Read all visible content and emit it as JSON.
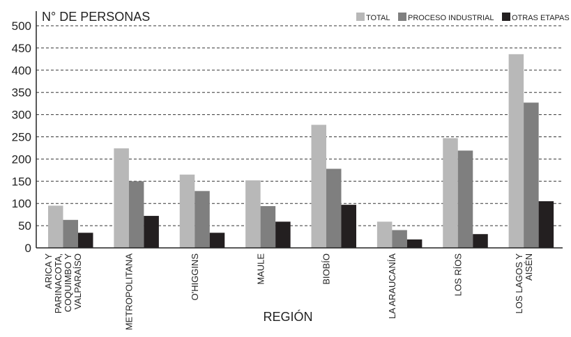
{
  "chart_data": {
    "type": "bar",
    "ylabel": "N° DE PERSONAS",
    "xlabel": "REGIÓN",
    "ylim": [
      0,
      500
    ],
    "yticks": [
      0,
      50,
      100,
      150,
      200,
      250,
      300,
      350,
      400,
      450,
      500
    ],
    "grid": true,
    "legend_position": "top-right",
    "categories": [
      [
        "ARICA Y",
        "PARINACOTA,",
        "COQUIMBO Y",
        "VALPARAÍSO"
      ],
      [
        "METROPOLITANA"
      ],
      [
        "O'HIGGINS"
      ],
      [
        "MAULE"
      ],
      [
        "BIOBÍO"
      ],
      [
        "LA ARAUCANÍA"
      ],
      [
        "LOS RÍOS"
      ],
      [
        "LOS LAGOS Y",
        "AISÉN"
      ]
    ],
    "series": [
      {
        "name": "TOTAL",
        "color": "#b8b8b8",
        "values": [
          95,
          224,
          165,
          152,
          277,
          59,
          247,
          436
        ]
      },
      {
        "name": "PROCESO INDUSTRIAL",
        "color": "#7f7f7f",
        "values": [
          63,
          150,
          128,
          94,
          178,
          40,
          219,
          327
        ]
      },
      {
        "name": "OTRAS ETAPAS",
        "color": "#231f20",
        "values": [
          34,
          72,
          34,
          59,
          97,
          19,
          31,
          105
        ]
      }
    ]
  }
}
